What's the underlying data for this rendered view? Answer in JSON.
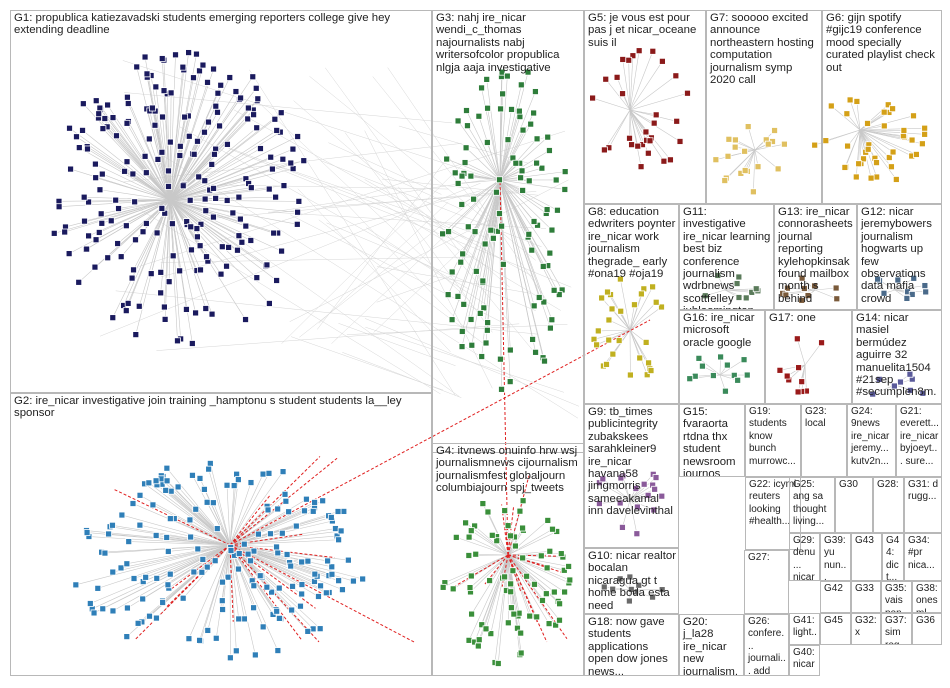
{
  "graph": {
    "colors": {
      "border": "#b8b8b8",
      "edge": "#c8c8c8",
      "edge_highlight": "#e02020",
      "G1": "#1a1a5e",
      "G2": "#2f7fb8",
      "G3": "#2e7d3a",
      "G4": "#3a8f3a",
      "G5": "#8b1a1a",
      "G6": "#d4a017",
      "G7": "#e0c060",
      "G8": "#c0b020",
      "default": "#555555"
    },
    "groups": [
      {
        "id": "G1",
        "label": "G1: propublica katiezavadski students emerging reporters college give hey extending deadline"
      },
      {
        "id": "G2",
        "label": "G2: ire_nicar investigative join training _hamptonu s student students la__ley sponsor"
      },
      {
        "id": "G3",
        "label": "G3: nahj ire_nicar wendi_c_thomas najournalists nabj writersofcolor propublica nlgja aaja investigative"
      },
      {
        "id": "G4",
        "label": "G4: itvnews onuinfo hrw wsj journalismnews cijournalism journalismfest globaljourn columbiajourn spj_tweets"
      },
      {
        "id": "G5",
        "label": "G5: je vous est pour pas j et nicar_oceane suis il"
      },
      {
        "id": "G6",
        "label": "G6: gijn spotify #gijc19 conference mood specially curated playlist check out"
      },
      {
        "id": "G7",
        "label": "G7: sooooo excited announce northeastern hosting computation journalism symp 2020 call"
      },
      {
        "id": "G8",
        "label": "G8: education edwriters poynter ire_nicar work journalism thegrade_ early #ona19 #oja19"
      },
      {
        "id": "G9",
        "label": "G9: tb_times publicintegrity zubakskees sarahkleiner9 ire_nicar havana58 jimgmorris sameeakamal inn davelevinthal"
      },
      {
        "id": "G10",
        "label": "G10: nicar realtor bocalan nicaragua gt t home boda esta need"
      },
      {
        "id": "G11",
        "label": "G11: investigative ire_nicar learning best biz conference journalism wdrbnews scottfelley iubloomington"
      },
      {
        "id": "G12",
        "label": "G12: nicar jeremybowers journalism hogwarts up few observations data mafia crowd"
      },
      {
        "id": "G13",
        "label": "G13: ire_nicar connorasheets journal reporting kylehopkinsak found mailbox month s behind"
      },
      {
        "id": "G14",
        "label": "G14: nicar masiel bermúdez aguirre 32 manuelita1504 #21sep #secumplen8m..."
      },
      {
        "id": "G15",
        "label": "G15: fvaraorta rtdna thx student newsroom journos ryanbwitt dircetoca story..."
      },
      {
        "id": "G16",
        "label": "G16: ire_nicar microsoft oracle google"
      },
      {
        "id": "G17",
        "label": "G17: one"
      },
      {
        "id": "G18",
        "label": "G18: now gave students applications open dow jones news..."
      },
      {
        "id": "G19",
        "label": "G19: students know bunch murrowc..."
      },
      {
        "id": "G20",
        "label": "G20: j_la28 ire_nicar new journalism..."
      },
      {
        "id": "G21",
        "label": "G21: everett... ire_nicar byjoeyt... sure..."
      },
      {
        "id": "G22",
        "label": "G22: icymi reuters looking #health..."
      },
      {
        "id": "G23",
        "label": "G23: local"
      },
      {
        "id": "G24",
        "label": "G24: 9news ire_nicar jeremy... kutv2n..."
      },
      {
        "id": "G25",
        "label": "G25: ang sa thought living..."
      },
      {
        "id": "G26",
        "label": "G26: confere... journali... add list..."
      },
      {
        "id": "G27",
        "label": "G27:"
      },
      {
        "id": "G28",
        "label": "G28:"
      },
      {
        "id": "G29",
        "label": "G29: denu... nicar cuen..."
      },
      {
        "id": "G30",
        "label": "G30"
      },
      {
        "id": "G31",
        "label": "G31: d rugg..."
      },
      {
        "id": "G32",
        "label": "G32: x"
      },
      {
        "id": "G33",
        "label": "G33"
      },
      {
        "id": "G34",
        "label": "G34: #pr nica..."
      },
      {
        "id": "G35",
        "label": "G35: vais pon..."
      },
      {
        "id": "G36",
        "label": "G36"
      },
      {
        "id": "G37",
        "label": "G37: sim reg..."
      },
      {
        "id": "G38",
        "label": "G38: ones ml"
      },
      {
        "id": "G39",
        "label": "G39: yu nun..."
      },
      {
        "id": "G40",
        "label": "G40: nicar"
      },
      {
        "id": "G41",
        "label": "G41: light... talks..."
      },
      {
        "id": "G42",
        "label": "G42"
      },
      {
        "id": "G43",
        "label": "G43"
      },
      {
        "id": "G44",
        "label": "G44: dict..."
      },
      {
        "id": "G45",
        "label": "G45"
      }
    ]
  }
}
